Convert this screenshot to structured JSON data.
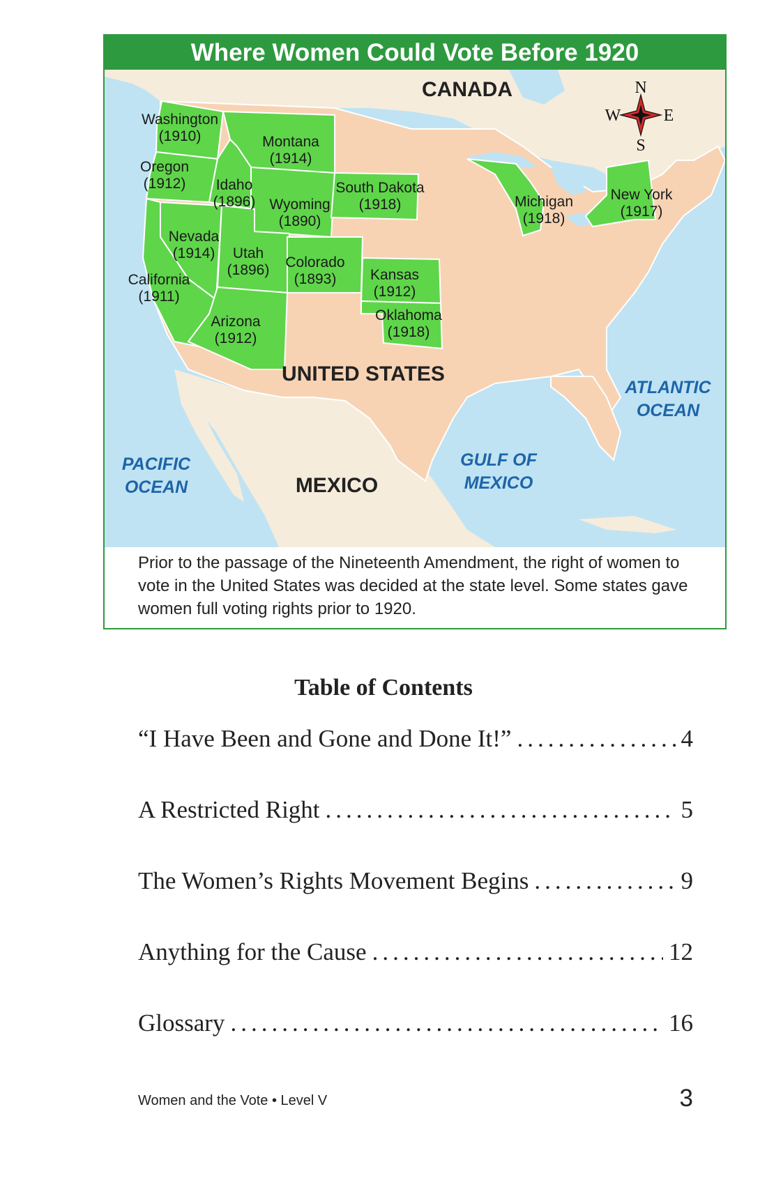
{
  "map": {
    "title": "Where Women Could Vote Before 1920",
    "caption": "Prior to the passage of the Nineteenth Amendment, the right of women to vote in the United States was decided at the state level. Some states gave women full voting rights prior to 1920.",
    "colors": {
      "suffrage_state": "#5fd54a",
      "other_state": "#f7d3b4",
      "water": "#bfe3f3",
      "neighbor_land": "#f6ecdc",
      "title_bar": "#2d9a3f"
    },
    "regions": {
      "canada": "CANADA",
      "united_states": "UNITED STATES",
      "mexico": "MEXICO"
    },
    "water": {
      "pacific": [
        "PACIFIC",
        "OCEAN"
      ],
      "atlantic": [
        "ATLANTIC",
        "OCEAN"
      ],
      "gulf": [
        "GULF OF",
        "MEXICO"
      ]
    },
    "compass": {
      "n": "N",
      "s": "S",
      "e": "E",
      "w": "W"
    },
    "states": [
      {
        "name": "Washington",
        "year": "(1910)"
      },
      {
        "name": "Oregon",
        "year": "(1912)"
      },
      {
        "name": "Montana",
        "year": "(1914)"
      },
      {
        "name": "Idaho",
        "year": "(1896)"
      },
      {
        "name": "Wyoming",
        "year": "(1890)"
      },
      {
        "name": "South Dakota",
        "year": "(1918)"
      },
      {
        "name": "Nevada",
        "year": "(1914)"
      },
      {
        "name": "Utah",
        "year": "(1896)"
      },
      {
        "name": "Colorado",
        "year": "(1893)"
      },
      {
        "name": "California",
        "year": "(1911)"
      },
      {
        "name": "Kansas",
        "year": "(1912)"
      },
      {
        "name": "Arizona",
        "year": "(1912)"
      },
      {
        "name": "Oklahoma",
        "year": "(1918)"
      },
      {
        "name": "Michigan",
        "year": "(1918)"
      },
      {
        "name": "New York",
        "year": "(1917)"
      }
    ]
  },
  "toc": {
    "title": "Table of Contents",
    "entries": [
      {
        "title": "“I Have Been and Gone and Done It!”",
        "page": "4"
      },
      {
        "title": "A Restricted Right",
        "page": "5"
      },
      {
        "title": "The Women’s Rights Movement Begins",
        "page": "9"
      },
      {
        "title": "Anything for the Cause",
        "page": "12"
      },
      {
        "title": "Glossary",
        "page": "16"
      }
    ]
  },
  "footer": {
    "book": "Women and the Vote • Level V",
    "page_number": "3"
  }
}
